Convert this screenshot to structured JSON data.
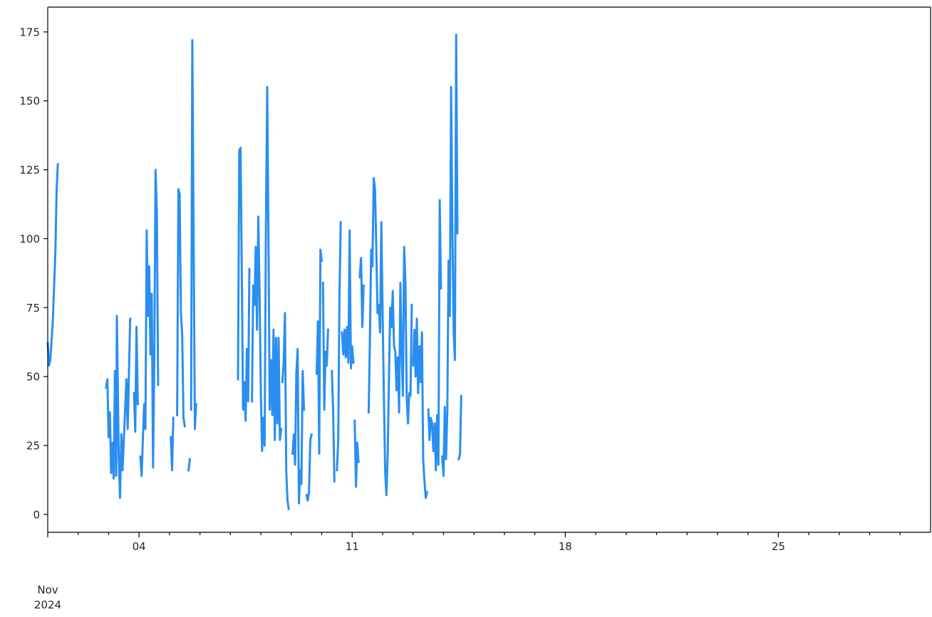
{
  "chart_data": {
    "type": "line",
    "title": "",
    "xlabel": "",
    "ylabel": "",
    "x_axis_type": "date",
    "x_range": [
      "2024-11-01T00:00",
      "2024-11-30T00:00"
    ],
    "ylim": [
      -6.5,
      184
    ],
    "grid": false,
    "legend": "none",
    "colors": {
      "line": "#2a8ef0",
      "axis": "#000000",
      "text": "#262626"
    },
    "x_ticks": [
      {
        "date": "2024-11-04",
        "label": "04"
      },
      {
        "date": "2024-11-11",
        "label": "11"
      },
      {
        "date": "2024-11-18",
        "label": "18"
      },
      {
        "date": "2024-11-25",
        "label": "25"
      }
    ],
    "x_minor_ticks": [
      "2024-11-02",
      "2024-11-03",
      "2024-11-05",
      "2024-11-06",
      "2024-11-07",
      "2024-11-08",
      "2024-11-09",
      "2024-11-10",
      "2024-11-12",
      "2024-11-13",
      "2024-11-14",
      "2024-11-15",
      "2024-11-16",
      "2024-11-17",
      "2024-11-19",
      "2024-11-20",
      "2024-11-21",
      "2024-11-22",
      "2024-11-23",
      "2024-11-24",
      "2024-11-26",
      "2024-11-27",
      "2024-11-28",
      "2024-11-29"
    ],
    "x_offset_label": [
      "Nov",
      "2024"
    ],
    "y_ticks": [
      0,
      25,
      50,
      75,
      100,
      125,
      150,
      175
    ],
    "series": [
      {
        "segments": [
          [
            [
              "2024-11-01T00:00",
              62
            ],
            [
              "2024-11-01T01:00",
              54
            ],
            [
              "2024-11-01T02:00",
              56
            ],
            [
              "2024-11-01T04:00",
              70
            ],
            [
              "2024-11-01T06:00",
              95
            ],
            [
              "2024-11-01T07:00",
              118
            ],
            [
              "2024-11-01T08:00",
              127
            ]
          ],
          [
            [
              "2024-11-02T22:00",
              46
            ],
            [
              "2024-11-02T23:00",
              49
            ],
            [
              "2024-11-03T00:00",
              28
            ],
            [
              "2024-11-03T01:00",
              37
            ],
            [
              "2024-11-03T02:00",
              15
            ],
            [
              "2024-11-03T03:00",
              26
            ],
            [
              "2024-11-03T04:00",
              13
            ],
            [
              "2024-11-03T05:00",
              52
            ],
            [
              "2024-11-03T06:00",
              14
            ],
            [
              "2024-11-03T06:30",
              72
            ],
            [
              "2024-11-03T08:00",
              20
            ],
            [
              "2024-11-03T09:00",
              6
            ],
            [
              "2024-11-03T10:00",
              29
            ],
            [
              "2024-11-03T11:00",
              16
            ],
            [
              "2024-11-03T13:00",
              38
            ],
            [
              "2024-11-03T14:00",
              49
            ],
            [
              "2024-11-03T15:00",
              31
            ],
            [
              "2024-11-03T17:00",
              71
            ]
          ],
          [
            [
              "2024-11-03T20:00",
              44
            ],
            [
              "2024-11-03T21:00",
              30
            ],
            [
              "2024-11-03T22:00",
              68
            ],
            [
              "2024-11-03T23:00",
              40
            ]
          ],
          [
            [
              "2024-11-04T01:00",
              21
            ],
            [
              "2024-11-04T02:00",
              14
            ],
            [
              "2024-11-04T04:00",
              40
            ],
            [
              "2024-11-04T05:00",
              31
            ],
            [
              "2024-11-04T06:00",
              103
            ],
            [
              "2024-11-04T07:00",
              72
            ],
            [
              "2024-11-04T08:00",
              90
            ],
            [
              "2024-11-04T09:00",
              58
            ],
            [
              "2024-11-04T10:00",
              80
            ],
            [
              "2024-11-04T11:00",
              17
            ],
            [
              "2024-11-04T12:00",
              55
            ],
            [
              "2024-11-04T13:00",
              125
            ],
            [
              "2024-11-04T14:00",
              110
            ],
            [
              "2024-11-04T15:00",
              47
            ]
          ],
          [
            [
              "2024-11-05T01:00",
              28
            ],
            [
              "2024-11-05T02:00",
              16
            ],
            [
              "2024-11-05T03:00",
              35
            ]
          ],
          [
            [
              "2024-11-05T06:00",
              36
            ],
            [
              "2024-11-05T07:00",
              118
            ],
            [
              "2024-11-05T08:00",
              116
            ],
            [
              "2024-11-05T09:00",
              73
            ],
            [
              "2024-11-05T10:00",
              65
            ],
            [
              "2024-11-05T11:00",
              35
            ],
            [
              "2024-11-05T12:00",
              32
            ]
          ],
          [
            [
              "2024-11-05T15:00",
              16
            ],
            [
              "2024-11-05T16:00",
              20
            ]
          ],
          [
            [
              "2024-11-05T17:00",
              38
            ],
            [
              "2024-11-05T18:00",
              172
            ],
            [
              "2024-11-05T20:00",
              31
            ],
            [
              "2024-11-05T21:00",
              40
            ]
          ],
          [
            [
              "2024-11-07T06:00",
              49
            ],
            [
              "2024-11-07T07:00",
              132
            ],
            [
              "2024-11-07T08:00",
              133
            ],
            [
              "2024-11-07T09:00",
              87
            ],
            [
              "2024-11-07T10:00",
              38
            ],
            [
              "2024-11-07T11:00",
              48
            ],
            [
              "2024-11-07T12:00",
              34
            ],
            [
              "2024-11-07T13:00",
              60
            ],
            [
              "2024-11-07T14:00",
              41
            ],
            [
              "2024-11-07T15:00",
              89
            ]
          ],
          [
            [
              "2024-11-07T17:00",
              41
            ],
            [
              "2024-11-07T18:00",
              83
            ],
            [
              "2024-11-07T19:00",
              76
            ],
            [
              "2024-11-07T20:00",
              97
            ],
            [
              "2024-11-07T21:00",
              67
            ],
            [
              "2024-11-07T22:00",
              108
            ],
            [
              "2024-11-07T23:00",
              81
            ],
            [
              "2024-11-08T00:00",
              44
            ],
            [
              "2024-11-08T01:00",
              23
            ],
            [
              "2024-11-08T02:00",
              35
            ],
            [
              "2024-11-08T03:00",
              25
            ],
            [
              "2024-11-08T04:00",
              105
            ],
            [
              "2024-11-08T05:00",
              155
            ],
            [
              "2024-11-08T06:00",
              99
            ],
            [
              "2024-11-08T07:00",
              38
            ],
            [
              "2024-11-08T08:00",
              56
            ],
            [
              "2024-11-08T09:00",
              36
            ],
            [
              "2024-11-08T10:00",
              67
            ],
            [
              "2024-11-08T11:00",
              27
            ],
            [
              "2024-11-08T12:00",
              64
            ],
            [
              "2024-11-08T13:00",
              33
            ],
            [
              "2024-11-08T14:00",
              64
            ],
            [
              "2024-11-08T15:00",
              27
            ],
            [
              "2024-11-08T16:00",
              31
            ]
          ],
          [
            [
              "2024-11-08T17:00",
              48
            ],
            [
              "2024-11-08T18:00",
              55
            ],
            [
              "2024-11-08T19:00",
              73
            ],
            [
              "2024-11-08T20:00",
              16
            ],
            [
              "2024-11-08T21:00",
              5
            ],
            [
              "2024-11-08T22:00",
              2
            ]
          ],
          [
            [
              "2024-11-09T01:00",
              22
            ],
            [
              "2024-11-09T02:00",
              29
            ],
            [
              "2024-11-09T03:00",
              18
            ],
            [
              "2024-11-09T04:00",
              51
            ],
            [
              "2024-11-09T05:00",
              60
            ],
            [
              "2024-11-09T06:00",
              4
            ],
            [
              "2024-11-09T07:00",
              16
            ],
            [
              "2024-11-09T08:00",
              11
            ],
            [
              "2024-11-09T09:00",
              52
            ],
            [
              "2024-11-09T10:00",
              38
            ]
          ],
          [
            [
              "2024-11-09T12:00",
              7
            ],
            [
              "2024-11-09T13:00",
              5
            ],
            [
              "2024-11-09T14:00",
              8
            ],
            [
              "2024-11-09T15:00",
              27
            ],
            [
              "2024-11-09T16:00",
              29
            ]
          ],
          [
            [
              "2024-11-09T20:00",
              51
            ],
            [
              "2024-11-09T21:00",
              70
            ],
            [
              "2024-11-09T22:00",
              22
            ],
            [
              "2024-11-09T23:00",
              96
            ],
            [
              "2024-11-10T00:00",
              92
            ]
          ],
          [
            [
              "2024-11-10T01:00",
              84
            ],
            [
              "2024-11-10T02:00",
              38
            ],
            [
              "2024-11-10T03:00",
              59
            ],
            [
              "2024-11-10T04:00",
              54
            ],
            [
              "2024-11-10T05:00",
              67
            ]
          ],
          [
            [
              "2024-11-10T08:00",
              52
            ],
            [
              "2024-11-10T09:00",
              38
            ],
            [
              "2024-11-10T10:00",
              12
            ]
          ],
          [
            [
              "2024-11-10T12:00",
              16
            ],
            [
              "2024-11-10T13:00",
              27
            ],
            [
              "2024-11-10T14:00",
              79
            ],
            [
              "2024-11-10T15:00",
              106
            ]
          ],
          [
            [
              "2024-11-10T16:00",
              66
            ],
            [
              "2024-11-10T17:00",
              58
            ],
            [
              "2024-11-10T18:00",
              67
            ],
            [
              "2024-11-10T19:00",
              57
            ],
            [
              "2024-11-10T20:00",
              68
            ],
            [
              "2024-11-10T21:00",
              55
            ],
            [
              "2024-11-10T22:00",
              103
            ],
            [
              "2024-11-10T23:00",
              53
            ],
            [
              "2024-11-11T00:00",
              61
            ],
            [
              "2024-11-11T01:00",
              55
            ]
          ],
          [
            [
              "2024-11-11T02:00",
              34
            ],
            [
              "2024-11-11T03:00",
              10
            ],
            [
              "2024-11-11T04:00",
              26
            ],
            [
              "2024-11-11T05:00",
              19
            ]
          ],
          [
            [
              "2024-11-11T06:00",
              86
            ],
            [
              "2024-11-11T07:00",
              93
            ],
            [
              "2024-11-11T08:00",
              68
            ],
            [
              "2024-11-11T09:00",
              83
            ]
          ],
          [
            [
              "2024-11-11T13:00",
              37
            ],
            [
              "2024-11-11T14:00",
              64
            ],
            [
              "2024-11-11T15:00",
              96
            ],
            [
              "2024-11-11T16:00",
              90
            ],
            [
              "2024-11-11T17:00",
              122
            ],
            [
              "2024-11-11T18:00",
              118
            ],
            [
              "2024-11-11T19:00",
              97
            ],
            [
              "2024-11-11T20:00",
              73
            ],
            [
              "2024-11-11T21:00",
              76
            ],
            [
              "2024-11-11T22:00",
              66
            ],
            [
              "2024-11-11T23:00",
              106
            ],
            [
              "2024-11-12T00:00",
              72
            ],
            [
              "2024-11-12T01:00",
              44
            ],
            [
              "2024-11-12T02:00",
              16
            ],
            [
              "2024-11-12T03:00",
              7
            ],
            [
              "2024-11-12T04:00",
              22
            ],
            [
              "2024-11-12T06:00",
              75
            ],
            [
              "2024-11-12T07:00",
              68
            ],
            [
              "2024-11-12T08:00",
              81
            ],
            [
              "2024-11-12T09:00",
              61
            ],
            [
              "2024-11-12T10:00",
              59
            ],
            [
              "2024-11-12T11:00",
              45
            ],
            [
              "2024-11-12T12:00",
              57
            ],
            [
              "2024-11-12T13:00",
              37
            ],
            [
              "2024-11-12T14:00",
              84
            ],
            [
              "2024-11-12T15:00",
              59
            ],
            [
              "2024-11-12T16:00",
              43
            ],
            [
              "2024-11-12T17:00",
              97
            ],
            [
              "2024-11-12T18:00",
              84
            ],
            [
              "2024-11-12T19:00",
              42
            ],
            [
              "2024-11-12T20:00",
              33
            ],
            [
              "2024-11-12T21:00",
              44
            ],
            [
              "2024-11-12T22:00",
              43
            ],
            [
              "2024-11-12T23:00",
              76
            ]
          ],
          [
            [
              "2024-11-13T00:00",
              54
            ],
            [
              "2024-11-13T01:00",
              67
            ],
            [
              "2024-11-13T02:00",
              50
            ],
            [
              "2024-11-13T03:00",
              71
            ],
            [
              "2024-11-13T04:00",
              44
            ],
            [
              "2024-11-13T05:00",
              61
            ],
            [
              "2024-11-13T06:00",
              48
            ],
            [
              "2024-11-13T07:00",
              66
            ],
            [
              "2024-11-13T08:00",
              20
            ],
            [
              "2024-11-13T09:00",
              12
            ],
            [
              "2024-11-13T10:00",
              6
            ],
            [
              "2024-11-13T11:00",
              8
            ]
          ],
          [
            [
              "2024-11-13T12:00",
              38
            ],
            [
              "2024-11-13T13:00",
              27
            ],
            [
              "2024-11-13T14:00",
              35
            ],
            [
              "2024-11-13T15:00",
              33
            ],
            [
              "2024-11-13T16:00",
              23
            ],
            [
              "2024-11-13T17:00",
              33
            ],
            [
              "2024-11-13T18:00",
              16
            ],
            [
              "2024-11-13T19:00",
              36
            ],
            [
              "2024-11-13T20:00",
              18
            ],
            [
              "2024-11-13T21:00",
              114
            ],
            [
              "2024-11-13T22:00",
              82
            ]
          ],
          [
            [
              "2024-11-13T23:00",
              21
            ],
            [
              "2024-11-14T00:00",
              14
            ],
            [
              "2024-11-14T01:00",
              39
            ],
            [
              "2024-11-14T02:00",
              20
            ],
            [
              "2024-11-14T03:00",
              38
            ],
            [
              "2024-11-14T04:00",
              92
            ],
            [
              "2024-11-14T05:00",
              72
            ],
            [
              "2024-11-14T06:00",
              155
            ],
            [
              "2024-11-14T07:00",
              103
            ],
            [
              "2024-11-14T08:00",
              66
            ],
            [
              "2024-11-14T09:00",
              56
            ],
            [
              "2024-11-14T10:00",
              174
            ],
            [
              "2024-11-14T11:00",
              102
            ]
          ],
          [
            [
              "2024-11-14T12:00",
              20
            ],
            [
              "2024-11-14T13:00",
              22
            ],
            [
              "2024-11-14T14:00",
              43
            ]
          ]
        ]
      }
    ]
  }
}
